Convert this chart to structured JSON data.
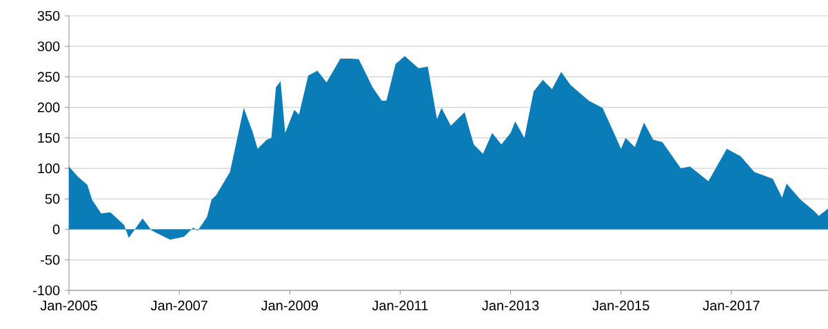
{
  "chart_data": {
    "type": "area",
    "color": "#0a7db8",
    "x": [
      "2005-01",
      "2005-03",
      "2005-05",
      "2005-06",
      "2005-08",
      "2005-10",
      "2006-01",
      "2006-02",
      "2006-05",
      "2006-07",
      "2006-11",
      "2007-02",
      "2007-04",
      "2007-05",
      "2007-07",
      "2007-08",
      "2007-09",
      "2007-12",
      "2008-03",
      "2008-05",
      "2008-06",
      "2008-08",
      "2008-09",
      "2008-10",
      "2008-11",
      "2008-12",
      "2009-02",
      "2009-03",
      "2009-05",
      "2009-07",
      "2009-09",
      "2009-12",
      "2010-02",
      "2010-04",
      "2010-07",
      "2010-09",
      "2010-10",
      "2010-12",
      "2011-02",
      "2011-05",
      "2011-07",
      "2011-09",
      "2011-10",
      "2011-12",
      "2012-03",
      "2012-05",
      "2012-07",
      "2012-09",
      "2012-11",
      "2013-01",
      "2013-02",
      "2013-04",
      "2013-06",
      "2013-08",
      "2013-10",
      "2013-12",
      "2014-02",
      "2014-06",
      "2014-09",
      "2014-11",
      "2015-01",
      "2015-02",
      "2015-04",
      "2015-06",
      "2015-08",
      "2015-10",
      "2016-02",
      "2016-04",
      "2016-08",
      "2016-12",
      "2017-03",
      "2017-06",
      "2017-10",
      "2017-12",
      "2018-01",
      "2018-04",
      "2018-07",
      "2018-08",
      "2018-10"
    ],
    "values": [
      103,
      86,
      73,
      49,
      26,
      28,
      7,
      -14,
      18,
      -2,
      -17,
      -12,
      3,
      -2,
      20,
      49,
      56,
      94,
      199,
      158,
      132,
      147,
      150,
      233,
      243,
      158,
      196,
      188,
      252,
      260,
      241,
      280,
      280,
      279,
      233,
      211,
      211,
      271,
      284,
      264,
      267,
      181,
      199,
      170,
      192,
      139,
      124,
      158,
      139,
      158,
      177,
      150,
      226,
      245,
      230,
      258,
      237,
      211,
      199,
      166,
      132,
      150,
      135,
      175,
      147,
      143,
      100,
      103,
      79,
      132,
      120,
      94,
      83,
      52,
      75,
      49,
      30,
      22,
      34
    ],
    "xlim": [
      "2005-01",
      "2018-10"
    ],
    "xticks": [
      {
        "value": "2005-01",
        "label": "Jan-2005"
      },
      {
        "value": "2007-01",
        "label": "Jan-2007"
      },
      {
        "value": "2009-01",
        "label": "Jan-2009"
      },
      {
        "value": "2011-01",
        "label": "Jan-2011"
      },
      {
        "value": "2013-01",
        "label": "Jan-2013"
      },
      {
        "value": "2015-01",
        "label": "Jan-2015"
      },
      {
        "value": "2017-01",
        "label": "Jan-2017"
      }
    ],
    "ylim": [
      -100,
      350
    ],
    "yticks": [
      -100,
      -50,
      0,
      50,
      100,
      150,
      200,
      250,
      300,
      350
    ],
    "grid": "y"
  }
}
